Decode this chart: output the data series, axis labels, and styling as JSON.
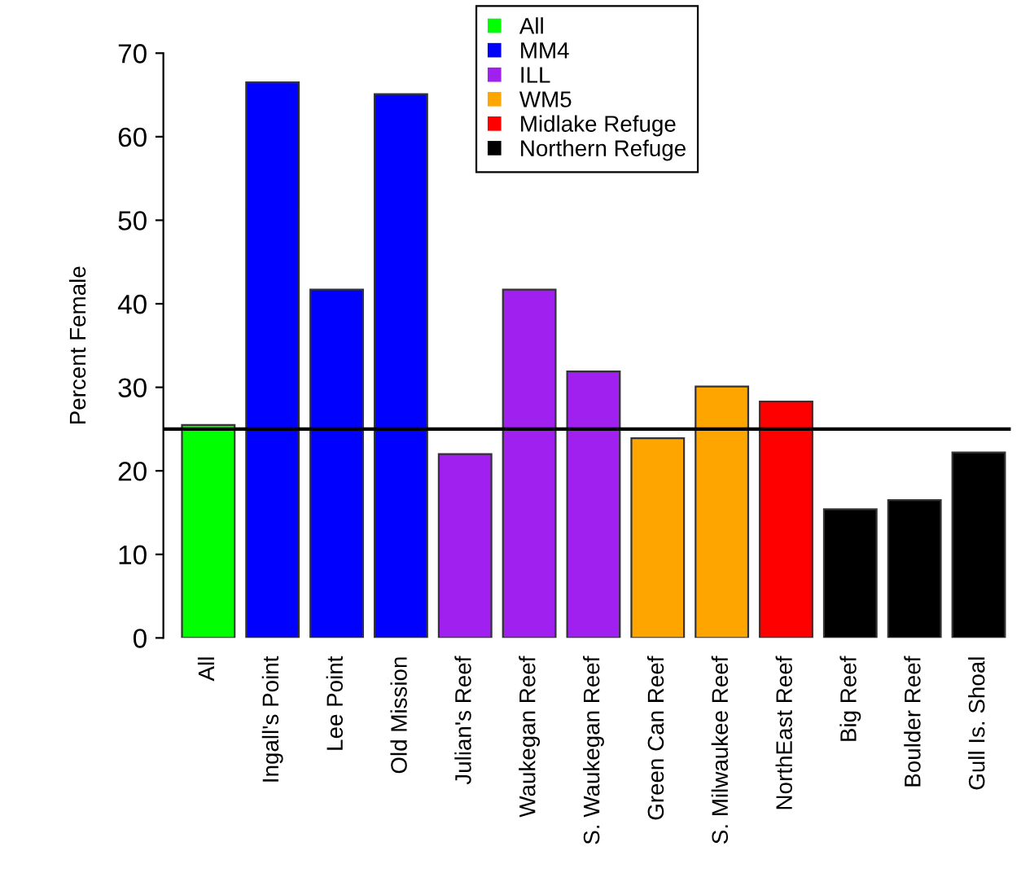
{
  "chart_data": {
    "type": "bar",
    "ylabel": "Percent Female",
    "categories": [
      "All",
      "Ingall's Point",
      "Lee Point",
      "Old Mission",
      "Julian's Reef",
      "Waukegan Reef",
      "S. Waukegan Reef",
      "Green Can Reef",
      "S. Milwaukee Reef",
      "NorthEast Reef",
      "Big Reef",
      "Boulder Reef",
      "Gull Is. Shoal"
    ],
    "series": [
      {
        "name": "All",
        "color": "#00ff00",
        "values": [
          25.5,
          null,
          null,
          null,
          null,
          null,
          null,
          null,
          null,
          null,
          null,
          null,
          null
        ]
      },
      {
        "name": "MM4",
        "color": "#0000ff",
        "values": [
          null,
          66.5,
          41.7,
          65.1,
          null,
          null,
          null,
          null,
          null,
          null,
          null,
          null,
          null
        ]
      },
      {
        "name": "ILL",
        "color": "#a020f0",
        "values": [
          null,
          null,
          null,
          null,
          22.0,
          41.7,
          31.9,
          null,
          null,
          null,
          null,
          null,
          null
        ]
      },
      {
        "name": "WM5",
        "color": "#ffa500",
        "values": [
          null,
          null,
          null,
          null,
          null,
          null,
          null,
          23.9,
          30.1,
          null,
          null,
          null,
          null
        ]
      },
      {
        "name": "Midlake Refuge",
        "color": "#ff0000",
        "values": [
          null,
          null,
          null,
          null,
          null,
          null,
          null,
          null,
          null,
          28.3,
          null,
          null,
          null
        ]
      },
      {
        "name": "Northern Refuge",
        "color": "#000000",
        "values": [
          null,
          null,
          null,
          null,
          null,
          null,
          null,
          null,
          null,
          null,
          15.4,
          16.5,
          22.2
        ]
      }
    ],
    "ylim": [
      0,
      70
    ],
    "yticks": [
      0,
      10,
      20,
      30,
      40,
      50,
      60,
      70
    ],
    "ref_lines": [
      {
        "axis": "y",
        "value": 25,
        "color": "#000000"
      }
    ],
    "legend": "top",
    "grid": false
  }
}
